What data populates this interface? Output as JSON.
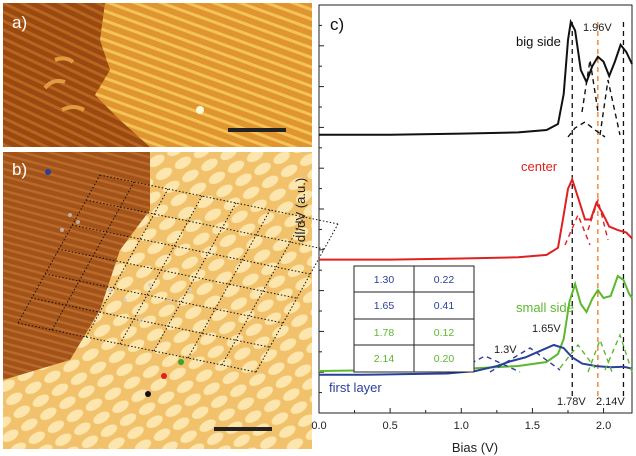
{
  "panels": {
    "a": {
      "label": "a)"
    },
    "b": {
      "label": "b)"
    },
    "c": {
      "label": "c)"
    }
  },
  "chart_data": {
    "type": "line",
    "xlabel": "Bias (V)",
    "ylabel": "dI/dV (a.u.)",
    "xlim": [
      0.0,
      2.2
    ],
    "x_ticks": [
      "0.0",
      "0.5",
      "1.0",
      "1.5",
      "2.0"
    ],
    "series": [
      {
        "name": "big side",
        "color": "#111111",
        "points": [
          [
            0.0,
            0.01
          ],
          [
            0.5,
            0.01
          ],
          [
            1.0,
            0.02
          ],
          [
            1.4,
            0.03
          ],
          [
            1.6,
            0.05
          ],
          [
            1.68,
            0.1
          ],
          [
            1.72,
            0.35
          ],
          [
            1.75,
            0.8
          ],
          [
            1.77,
            0.95
          ],
          [
            1.8,
            0.88
          ],
          [
            1.84,
            0.55
          ],
          [
            1.88,
            0.45
          ],
          [
            1.92,
            0.58
          ],
          [
            1.96,
            0.66
          ],
          [
            2.0,
            0.62
          ],
          [
            2.04,
            0.5
          ],
          [
            2.08,
            0.62
          ],
          [
            2.12,
            0.76
          ],
          [
            2.16,
            0.7
          ],
          [
            2.2,
            0.6
          ]
        ]
      },
      {
        "name": "center",
        "color": "#e02020",
        "points": [
          [
            0.0,
            0.02
          ],
          [
            0.5,
            0.02
          ],
          [
            1.0,
            0.03
          ],
          [
            1.4,
            0.04
          ],
          [
            1.6,
            0.06
          ],
          [
            1.68,
            0.12
          ],
          [
            1.72,
            0.4
          ],
          [
            1.75,
            0.62
          ],
          [
            1.78,
            0.7
          ],
          [
            1.82,
            0.55
          ],
          [
            1.87,
            0.36
          ],
          [
            1.91,
            0.36
          ],
          [
            1.95,
            0.5
          ],
          [
            1.99,
            0.42
          ],
          [
            2.04,
            0.3
          ],
          [
            2.1,
            0.27
          ],
          [
            2.16,
            0.25
          ],
          [
            2.2,
            0.2
          ]
        ]
      },
      {
        "name": "small side",
        "color": "#5cb82e",
        "points": [
          [
            0.0,
            0.03
          ],
          [
            0.5,
            0.04
          ],
          [
            1.0,
            0.05
          ],
          [
            1.4,
            0.08
          ],
          [
            1.6,
            0.12
          ],
          [
            1.68,
            0.2
          ],
          [
            1.72,
            0.35
          ],
          [
            1.76,
            0.72
          ],
          [
            1.8,
            0.9
          ],
          [
            1.84,
            0.7
          ],
          [
            1.88,
            0.62
          ],
          [
            1.92,
            0.75
          ],
          [
            1.96,
            0.84
          ],
          [
            2.0,
            0.76
          ],
          [
            2.05,
            0.78
          ],
          [
            2.1,
            0.98
          ],
          [
            2.14,
            0.94
          ],
          [
            2.18,
            0.8
          ],
          [
            2.2,
            0.76
          ]
        ]
      },
      {
        "name": "first layer",
        "color": "#2a3f9a",
        "points": [
          [
            0.0,
            0.02
          ],
          [
            0.3,
            0.02
          ],
          [
            0.6,
            0.03
          ],
          [
            0.9,
            0.04
          ],
          [
            1.1,
            0.08
          ],
          [
            1.25,
            0.16
          ],
          [
            1.35,
            0.24
          ],
          [
            1.45,
            0.3
          ],
          [
            1.55,
            0.4
          ],
          [
            1.65,
            0.5
          ],
          [
            1.72,
            0.45
          ],
          [
            1.78,
            0.3
          ],
          [
            1.85,
            0.2
          ],
          [
            1.95,
            0.16
          ],
          [
            2.05,
            0.14
          ],
          [
            2.14,
            0.15
          ],
          [
            2.2,
            0.12
          ]
        ]
      }
    ],
    "vlines": [
      {
        "x": 1.78,
        "color": "#111111"
      },
      {
        "x": 1.96,
        "color": "#f07a1a"
      },
      {
        "x": 2.14,
        "color": "#111111"
      }
    ],
    "annotations": [
      "1.96V",
      "1.3V",
      "1.65V",
      "1.78V",
      "2.14V"
    ],
    "table": {
      "rows": [
        {
          "energy": "1.30",
          "width": "0.22",
          "color": "#2a3f9a"
        },
        {
          "energy": "1.65",
          "width": "0.41",
          "color": "#2a3f9a"
        },
        {
          "energy": "1.78",
          "width": "0.12",
          "color": "#5cb82e"
        },
        {
          "energy": "2.14",
          "width": "0.20",
          "color": "#5cb82e"
        }
      ]
    }
  }
}
